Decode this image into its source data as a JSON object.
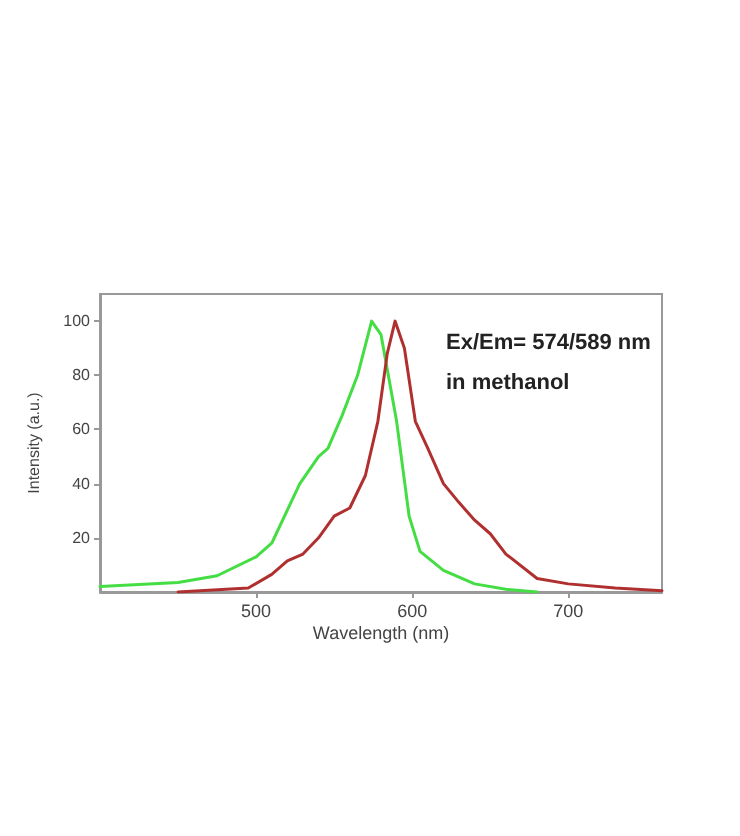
{
  "chart_data": {
    "type": "line",
    "xlabel": "Wavelength (nm)",
    "ylabel": "Intensity (a.u.)",
    "annotations": [
      "Ex/Em= 574/589 nm",
      "in methanol"
    ],
    "xlim": [
      400,
      760
    ],
    "xticks": [
      500,
      600,
      700
    ],
    "ylim": [
      0,
      110
    ],
    "yticks": [
      20,
      40,
      60,
      80,
      100
    ],
    "grid": false,
    "marker": "none",
    "line_style": "solid",
    "series": [
      {
        "color": "#44dd44",
        "x": [
          400,
          450,
          475,
          500,
          510,
          528,
          540,
          546,
          555,
          565,
          574,
          580,
          590,
          598,
          605,
          620,
          640,
          660,
          680
        ],
        "values": [
          2,
          3.5,
          6,
          13,
          18,
          40,
          50,
          53,
          65,
          80,
          100,
          95,
          63,
          28,
          15,
          8,
          3,
          1,
          0
        ]
      },
      {
        "color": "#b03030",
        "x": [
          450,
          495,
          510,
          520,
          530,
          540,
          550,
          560,
          570,
          578,
          584,
          589,
          595,
          602,
          610,
          620,
          630,
          640,
          650,
          660,
          680,
          700,
          730,
          760
        ],
        "values": [
          0,
          1.5,
          6.5,
          11.5,
          14,
          20,
          28,
          31,
          43,
          63,
          88,
          100,
          90,
          63,
          53,
          40,
          33,
          26.5,
          21.5,
          14,
          5,
          3,
          1.5,
          0.5
        ]
      }
    ]
  }
}
